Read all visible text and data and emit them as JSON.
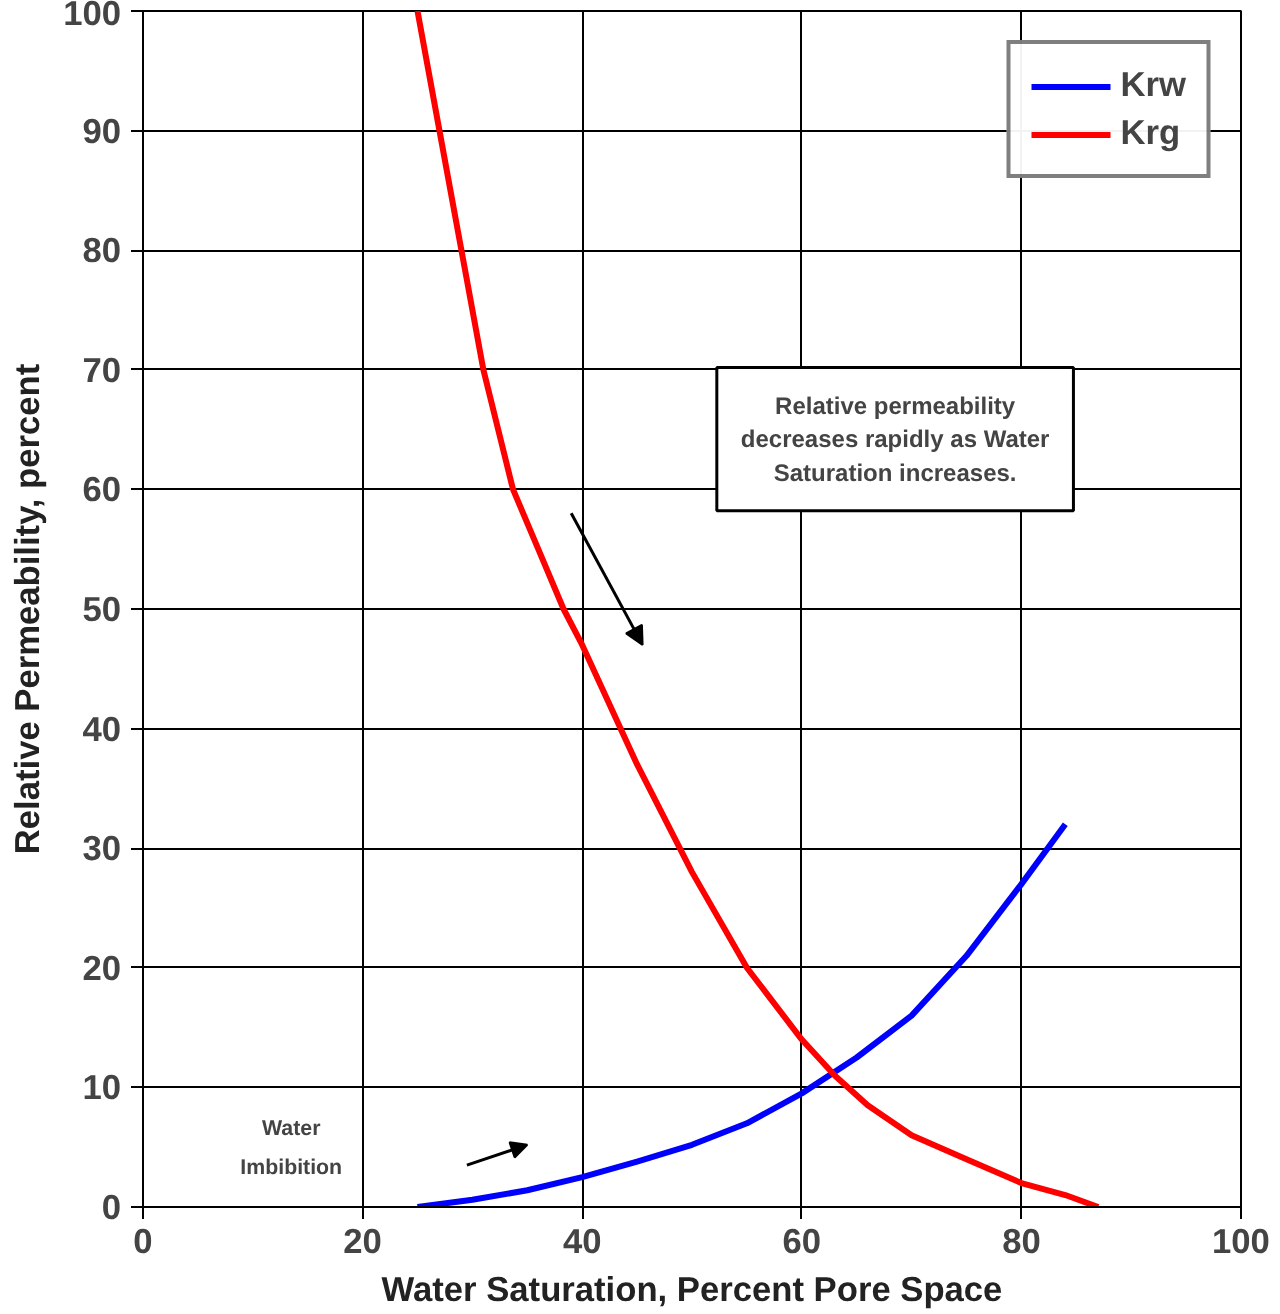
{
  "chart_data": {
    "type": "line",
    "xlabel": "Water Saturation, Percent Pore Space",
    "ylabel": "Relative Permeability, percent",
    "xlim": [
      0,
      100
    ],
    "ylim": [
      0,
      100
    ],
    "xticks": [
      0,
      20,
      40,
      60,
      80,
      100
    ],
    "yticks": [
      0,
      10,
      20,
      30,
      40,
      50,
      60,
      70,
      80,
      90,
      100
    ],
    "grid": true,
    "legend": "top right",
    "marker": "none",
    "line_style": "solid",
    "series": [
      {
        "name": "Krw",
        "color": "#0000ff",
        "x": [
          25,
          30,
          35,
          40,
          45,
          50,
          55,
          60,
          65,
          70,
          75,
          80,
          84
        ],
        "values": [
          0,
          0.6,
          1.4,
          2.5,
          3.8,
          5.2,
          7,
          9.5,
          12.5,
          16,
          21,
          27,
          32
        ]
      },
      {
        "name": "Krg",
        "color": "#ff0000",
        "x": [
          25,
          27,
          29,
          31,
          33.7,
          36,
          38.3,
          40,
          45,
          50,
          55,
          60,
          63,
          66,
          70,
          75,
          80,
          84,
          87
        ],
        "values": [
          100,
          90,
          80,
          70,
          60,
          55,
          50,
          47,
          37,
          28,
          20,
          14,
          11,
          8.5,
          6,
          4,
          2,
          1,
          0
        ]
      }
    ],
    "annotations": [
      "Relative permeability\ndecreases rapidly as Water\nSaturation increases.",
      "Water\nImbibition"
    ]
  }
}
